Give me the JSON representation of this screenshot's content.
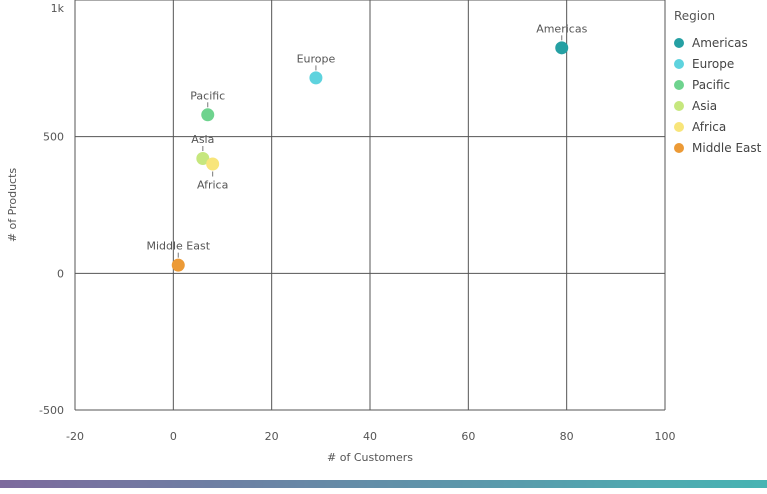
{
  "chart_data": {
    "type": "scatter",
    "xlabel": "# of Customers",
    "ylabel": "# of Products",
    "xlim": [
      -20,
      100
    ],
    "ylim": [
      -500,
      1000
    ],
    "x_ticks": [
      {
        "value": -20,
        "label": "-20"
      },
      {
        "value": 0,
        "label": "0"
      },
      {
        "value": 20,
        "label": "20"
      },
      {
        "value": 40,
        "label": "40"
      },
      {
        "value": 60,
        "label": "60"
      },
      {
        "value": 80,
        "label": "80"
      },
      {
        "value": 100,
        "label": "100"
      }
    ],
    "y_ticks": [
      {
        "value": -500,
        "label": "-500"
      },
      {
        "value": 0,
        "label": "0"
      },
      {
        "value": 500,
        "label": "500"
      },
      {
        "value": 1000,
        "label": "1k"
      }
    ],
    "grid": true,
    "legend": {
      "title": "Region",
      "placement": "right"
    },
    "series": [
      {
        "name": "Americas",
        "color": "#25a0a3",
        "x": 79,
        "y": 825,
        "label_position": "above"
      },
      {
        "name": "Europe",
        "color": "#5ed3de",
        "x": 29,
        "y": 715,
        "label_position": "above"
      },
      {
        "name": "Pacific",
        "color": "#6ed38e",
        "x": 7,
        "y": 580,
        "label_position": "above"
      },
      {
        "name": "Asia",
        "color": "#c6e77e",
        "x": 6,
        "y": 420,
        "label_position": "above"
      },
      {
        "name": "Africa",
        "color": "#f8e57a",
        "x": 8,
        "y": 400,
        "label_position": "below"
      },
      {
        "name": "Middle East",
        "color": "#ec9a36",
        "x": 1,
        "y": 30,
        "label_position": "above"
      }
    ]
  },
  "bottom_bar": {
    "gradient_start": "#7d6a9d",
    "gradient_end": "#47b4b3"
  }
}
